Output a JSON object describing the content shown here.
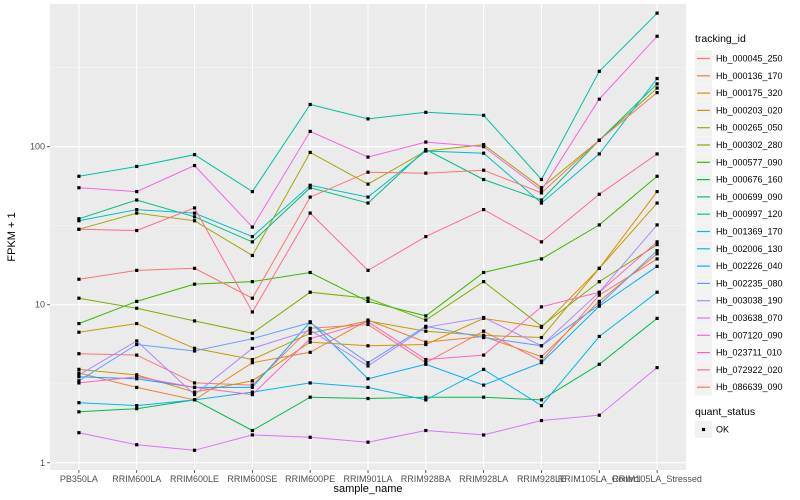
{
  "chart_data": {
    "type": "line",
    "xlabel": "sample_name",
    "ylabel": "FPKM + 1",
    "y_scale": "log10",
    "ylim": [
      0.9,
      800
    ],
    "y_ticks": [
      {
        "value": 1,
        "label": "1"
      },
      {
        "value": 10,
        "label": "10"
      },
      {
        "value": 100,
        "label": "100"
      }
    ],
    "grid": true,
    "legend_position": "right",
    "categories": [
      "PB350LA",
      "RRIM600LA",
      "RRIM600LE",
      "RRIM600SE",
      "RRIM600PE",
      "RRIM901LA",
      "RRIM928BA",
      "RRIM928LA",
      "RRIM928LE",
      "RRIM105LA_Control",
      "RRIM105LA_Stressed"
    ],
    "series_legend_title": "tracking_id",
    "series": [
      {
        "name": "Hb_000045_250",
        "color": "#F8766D",
        "values": [
          4.9,
          4.8,
          3.2,
          3.1,
          7.1,
          7.5,
          4.3,
          6.8,
          4.4,
          11.5,
          19.5
        ]
      },
      {
        "name": "Hb_000136_170",
        "color": "#EA8331",
        "values": [
          3.7,
          3.0,
          2.5,
          4.3,
          5.0,
          8.0,
          5.8,
          6.3,
          4.7,
          10.5,
          21.0
        ]
      },
      {
        "name": "Hb_000175_320",
        "color": "#D89000",
        "values": [
          3.9,
          3.6,
          2.8,
          3.3,
          5.8,
          5.5,
          5.6,
          8.2,
          7.2,
          17.0,
          52.0
        ]
      },
      {
        "name": "Hb_000203_020",
        "color": "#C09B00",
        "values": [
          6.7,
          7.6,
          5.3,
          4.5,
          6.6,
          7.9,
          6.8,
          6.4,
          6.2,
          17.0,
          44.0
        ]
      },
      {
        "name": "Hb_000265_050",
        "color": "#A3A500",
        "values": [
          30.0,
          38.0,
          34.0,
          20.5,
          92.0,
          58.0,
          94.0,
          103.0,
          55.0,
          110.0,
          235.0
        ]
      },
      {
        "name": "Hb_000302_280",
        "color": "#7CAE00",
        "values": [
          11.0,
          9.5,
          7.9,
          6.6,
          12.0,
          11.0,
          8.0,
          14.0,
          7.3,
          14.0,
          24.0
        ]
      },
      {
        "name": "Hb_000577_090",
        "color": "#39B600",
        "values": [
          7.6,
          10.5,
          13.5,
          14.0,
          16.0,
          10.5,
          8.5,
          16.0,
          19.5,
          32.0,
          65.0
        ]
      },
      {
        "name": "Hb_000676_160",
        "color": "#00BB4E",
        "values": [
          2.1,
          2.2,
          2.5,
          1.6,
          2.6,
          2.55,
          2.6,
          2.6,
          2.5,
          4.2,
          8.2
        ]
      },
      {
        "name": "Hb_000699_090",
        "color": "#00BF7D",
        "values": [
          35.0,
          46.0,
          36.0,
          25.0,
          55.0,
          44.0,
          96.0,
          62.0,
          46.0,
          110.0,
          250.0
        ]
      },
      {
        "name": "Hb_000997_120",
        "color": "#00C1A3",
        "values": [
          65.0,
          75.0,
          89.0,
          52.0,
          185.0,
          150.0,
          165.0,
          158.0,
          62.0,
          300.0,
          700.0
        ]
      },
      {
        "name": "Hb_001369_170",
        "color": "#00BFC4",
        "values": [
          34.0,
          40.0,
          38.0,
          27.0,
          57.0,
          48.0,
          94.0,
          91.0,
          44.0,
          90.0,
          270.0
        ]
      },
      {
        "name": "Hb_002006_130",
        "color": "#00B9E3",
        "values": [
          2.4,
          2.3,
          2.5,
          2.8,
          3.2,
          3.0,
          2.5,
          3.9,
          2.3,
          6.3,
          12.0
        ]
      },
      {
        "name": "Hb_002226_040",
        "color": "#00ADFA",
        "values": [
          3.5,
          3.4,
          3.0,
          3.0,
          7.8,
          3.4,
          4.2,
          3.1,
          4.3,
          9.8,
          17.5
        ]
      },
      {
        "name": "Hb_002235_080",
        "color": "#619CFF",
        "values": [
          3.3,
          5.6,
          5.1,
          6.1,
          7.7,
          4.3,
          7.3,
          6.2,
          5.5,
          10.0,
          22.0
        ]
      },
      {
        "name": "Hb_003038_190",
        "color": "#AE87FF",
        "values": [
          3.6,
          5.9,
          2.7,
          5.3,
          6.9,
          4.1,
          7.2,
          8.3,
          5.5,
          12.0,
          32.0
        ]
      },
      {
        "name": "Hb_003638_070",
        "color": "#DB72FB",
        "values": [
          1.55,
          1.3,
          1.2,
          1.5,
          1.45,
          1.35,
          1.6,
          1.5,
          1.85,
          2.0,
          4.0
        ]
      },
      {
        "name": "Hb_007120_090",
        "color": "#F564E3",
        "values": [
          55.0,
          52.0,
          76.0,
          31.0,
          125.0,
          86.0,
          107.0,
          100.0,
          53.0,
          200.0,
          500.0
        ]
      },
      {
        "name": "Hb_023711_010",
        "color": "#FF61C3",
        "values": [
          3.2,
          3.5,
          3.0,
          2.7,
          6.1,
          7.8,
          4.5,
          4.8,
          9.7,
          12.0,
          25.0
        ]
      },
      {
        "name": "Hb_072922_020",
        "color": "#FF6C91",
        "values": [
          30.0,
          29.5,
          41.0,
          9.0,
          38.0,
          16.5,
          27.0,
          40.0,
          25.0,
          50.0,
          90.0
        ]
      },
      {
        "name": "Hb_086639_090",
        "color": "#F8766D",
        "values": [
          14.5,
          16.5,
          17.0,
          11.0,
          48.0,
          69.0,
          68.0,
          71.0,
          51.0,
          110.0,
          220.0
        ]
      }
    ],
    "quant_status_legend": {
      "title": "quant_status",
      "items": [
        "OK"
      ]
    }
  }
}
